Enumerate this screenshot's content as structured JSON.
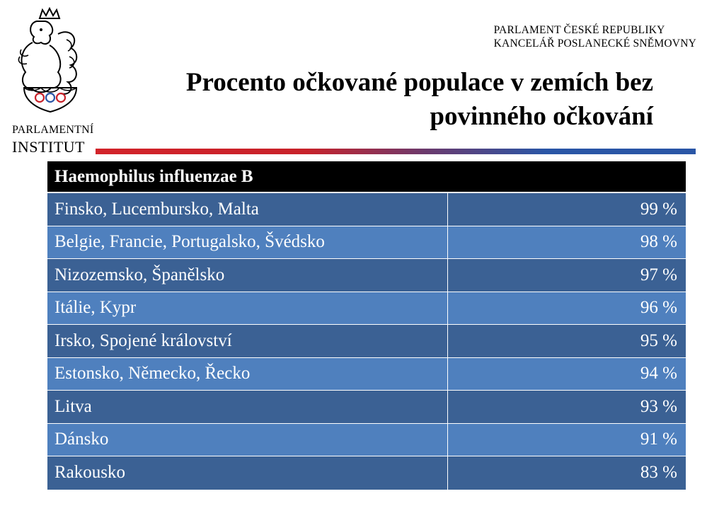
{
  "logo": {
    "icon": "czech-lion-emblem",
    "institute_line1": "PARLAMENTNÍ",
    "institute_line2": "INSTITUT"
  },
  "org": {
    "line1": "PARLAMENT ČESKÉ REPUBLIKY",
    "line2": "KANCELÁŘ POSLANECKÉ SNĚMOVNY"
  },
  "title": {
    "line1": "Procento očkované populace v zemích bez",
    "line2": "povinného očkování"
  },
  "colors": {
    "header_bg": "#000000",
    "row_dark": "#3b6194",
    "row_light": "#4f80be",
    "rule_red": "#d2232a",
    "rule_blue": "#2a56a6"
  },
  "table": {
    "header": "Haemophilus influenzae B",
    "rows": [
      {
        "countries": "Finsko, Lucembursko, Malta",
        "value": "99 %"
      },
      {
        "countries": "Belgie, Francie, Portugalsko, Švédsko",
        "value": "98 %"
      },
      {
        "countries": "Nizozemsko, Španělsko",
        "value": "97 %"
      },
      {
        "countries": "Itálie, Kypr",
        "value": "96 %"
      },
      {
        "countries": "Irsko, Spojené království",
        "value": "95 %"
      },
      {
        "countries": "Estonsko, Německo, Řecko",
        "value": "94 %"
      },
      {
        "countries": "Litva",
        "value": "93 %"
      },
      {
        "countries": "Dánsko",
        "value": "91 %"
      },
      {
        "countries": "Rakousko",
        "value": "83 %"
      }
    ]
  }
}
